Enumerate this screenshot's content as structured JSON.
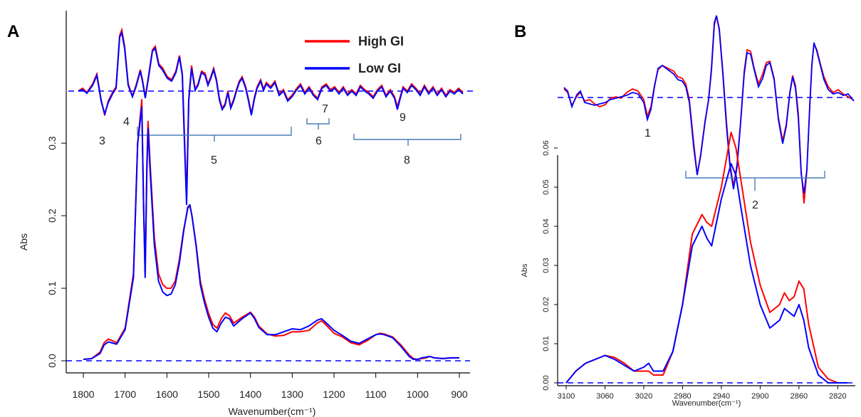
{
  "chart_data": [
    {
      "panel": "A",
      "type": "line",
      "xlabel": "Wavenumber(cm⁻¹)",
      "ylabel": "Abs",
      "xlim": [
        1800,
        900
      ],
      "ylim": [
        0,
        0.36
      ],
      "x_ticks": [
        1800,
        1700,
        1600,
        1500,
        1400,
        1300,
        1200,
        1100,
        1000,
        900
      ],
      "y_ticks": [
        0.0,
        0.1,
        0.2,
        0.3
      ],
      "x_tick_labels": [
        "1800",
        "1700",
        "1600",
        "1500",
        "1400",
        "1300",
        "1200",
        "1100",
        "1000",
        "900"
      ],
      "y_tick_labels": [
        "0.0",
        "0.1",
        "0.2",
        "0.3"
      ],
      "legend": {
        "position": "top-right",
        "entries": [
          {
            "name": "High GI",
            "color": "#ff0000"
          },
          {
            "name": "Low GI",
            "color": "#0000ff"
          }
        ]
      },
      "series": [
        {
          "name": "High GI",
          "color": "#ff0000",
          "x": [
            1800,
            1780,
            1760,
            1750,
            1740,
            1720,
            1700,
            1680,
            1670,
            1660,
            1656,
            1652,
            1648,
            1645,
            1640,
            1630,
            1620,
            1610,
            1600,
            1590,
            1580,
            1570,
            1560,
            1550,
            1545,
            1540,
            1530,
            1520,
            1510,
            1500,
            1490,
            1480,
            1470,
            1460,
            1450,
            1440,
            1420,
            1400,
            1390,
            1380,
            1360,
            1340,
            1320,
            1300,
            1280,
            1260,
            1240,
            1230,
            1220,
            1200,
            1180,
            1160,
            1140,
            1120,
            1100,
            1090,
            1080,
            1060,
            1040,
            1020,
            1010,
            1000,
            990,
            980,
            970,
            960,
            940,
            920,
            900
          ],
          "y": [
            0.002,
            0.003,
            0.012,
            0.025,
            0.03,
            0.025,
            0.045,
            0.12,
            0.3,
            0.36,
            0.22,
            0.12,
            0.27,
            0.33,
            0.27,
            0.17,
            0.12,
            0.105,
            0.1,
            0.1,
            0.11,
            0.14,
            0.18,
            0.21,
            0.214,
            0.2,
            0.16,
            0.11,
            0.085,
            0.065,
            0.05,
            0.045,
            0.058,
            0.066,
            0.062,
            0.052,
            0.06,
            0.067,
            0.06,
            0.048,
            0.037,
            0.034,
            0.035,
            0.04,
            0.04,
            0.042,
            0.052,
            0.055,
            0.05,
            0.038,
            0.033,
            0.025,
            0.022,
            0.028,
            0.036,
            0.038,
            0.037,
            0.033,
            0.022,
            0.008,
            0.003,
            0.002,
            0.003,
            0.004,
            0.006,
            0.004,
            0.003,
            0.004,
            0.004
          ]
        },
        {
          "name": "Low GI",
          "color": "#0000ff",
          "x": [
            1800,
            1780,
            1760,
            1750,
            1740,
            1720,
            1700,
            1680,
            1670,
            1660,
            1656,
            1652,
            1648,
            1645,
            1640,
            1630,
            1620,
            1610,
            1600,
            1590,
            1580,
            1570,
            1560,
            1550,
            1545,
            1540,
            1530,
            1520,
            1510,
            1500,
            1490,
            1480,
            1470,
            1460,
            1450,
            1440,
            1420,
            1400,
            1390,
            1380,
            1360,
            1340,
            1320,
            1300,
            1280,
            1260,
            1240,
            1230,
            1220,
            1200,
            1180,
            1160,
            1140,
            1120,
            1100,
            1090,
            1080,
            1060,
            1040,
            1020,
            1010,
            1000,
            990,
            980,
            970,
            960,
            940,
            920,
            900
          ],
          "y": [
            0.002,
            0.003,
            0.01,
            0.022,
            0.026,
            0.023,
            0.043,
            0.115,
            0.3,
            0.35,
            0.22,
            0.115,
            0.26,
            0.32,
            0.26,
            0.16,
            0.11,
            0.095,
            0.09,
            0.092,
            0.105,
            0.135,
            0.178,
            0.212,
            0.215,
            0.2,
            0.158,
            0.105,
            0.08,
            0.06,
            0.045,
            0.04,
            0.052,
            0.06,
            0.058,
            0.048,
            0.058,
            0.066,
            0.058,
            0.046,
            0.036,
            0.036,
            0.04,
            0.044,
            0.043,
            0.048,
            0.056,
            0.058,
            0.053,
            0.042,
            0.035,
            0.027,
            0.024,
            0.03,
            0.036,
            0.037,
            0.036,
            0.032,
            0.02,
            0.006,
            0.002,
            0.002,
            0.004,
            0.005,
            0.006,
            0.004,
            0.003,
            0.004,
            0.004
          ]
        }
      ],
      "band_labels": [
        "3",
        "4",
        "5",
        "6",
        "7",
        "8",
        "9"
      ]
    },
    {
      "panel": "B",
      "type": "line",
      "xlabel": "Wavenumber(cm⁻¹)",
      "ylabel": "Abs",
      "xlim": [
        3100,
        2810
      ],
      "ylim": [
        0,
        0.066
      ],
      "x_ticks": [
        3100,
        3060,
        3020,
        2980,
        2940,
        2900,
        2860,
        2820
      ],
      "y_ticks": [
        0.0,
        0.01,
        0.02,
        0.03,
        0.04,
        0.05,
        0.06
      ],
      "x_tick_labels": [
        "3100",
        "3060",
        "3020",
        "2980",
        "2940",
        "2900",
        "2860",
        "2820"
      ],
      "y_tick_labels": [
        "0.00",
        "0.01",
        "0.02",
        "0.03",
        "0.04",
        "0.05",
        "0.06"
      ],
      "series": [
        {
          "name": "High GI",
          "color": "#ff0000",
          "x": [
            3100,
            3090,
            3080,
            3070,
            3060,
            3050,
            3040,
            3030,
            3020,
            3015,
            3010,
            3000,
            2990,
            2980,
            2970,
            2960,
            2955,
            2950,
            2940,
            2930,
            2925,
            2920,
            2910,
            2900,
            2890,
            2880,
            2875,
            2870,
            2865,
            2860,
            2855,
            2850,
            2840,
            2830,
            2820,
            2810
          ],
          "y": [
            0.0,
            0.003,
            0.005,
            0.006,
            0.007,
            0.0065,
            0.005,
            0.003,
            0.003,
            0.003,
            0.002,
            0.002,
            0.008,
            0.02,
            0.038,
            0.043,
            0.041,
            0.04,
            0.05,
            0.064,
            0.06,
            0.052,
            0.036,
            0.025,
            0.018,
            0.02,
            0.023,
            0.021,
            0.022,
            0.026,
            0.024,
            0.015,
            0.004,
            0.001,
            0.0,
            0.0
          ]
        },
        {
          "name": "Low GI",
          "color": "#0000ff",
          "x": [
            3100,
            3090,
            3080,
            3070,
            3060,
            3050,
            3040,
            3030,
            3020,
            3015,
            3010,
            3000,
            2990,
            2980,
            2970,
            2960,
            2955,
            2950,
            2940,
            2930,
            2925,
            2920,
            2910,
            2900,
            2890,
            2880,
            2875,
            2870,
            2865,
            2860,
            2855,
            2850,
            2840,
            2830,
            2820,
            2810
          ],
          "y": [
            0.0,
            0.003,
            0.005,
            0.006,
            0.007,
            0.006,
            0.0045,
            0.003,
            0.004,
            0.005,
            0.003,
            0.003,
            0.008,
            0.02,
            0.035,
            0.04,
            0.037,
            0.035,
            0.047,
            0.056,
            0.053,
            0.045,
            0.03,
            0.02,
            0.014,
            0.016,
            0.019,
            0.018,
            0.017,
            0.02,
            0.016,
            0.009,
            0.002,
            0.0,
            0.0,
            0.0
          ]
        }
      ],
      "band_labels": [
        "1",
        "2"
      ]
    }
  ]
}
